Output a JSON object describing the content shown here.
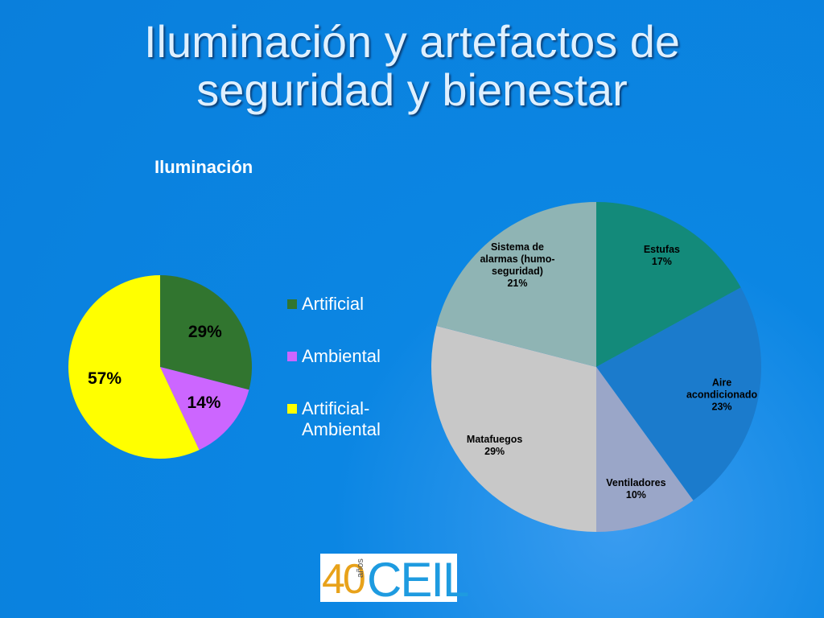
{
  "title": "Iluminación y artefactos de seguridad y bienestar",
  "chart_data": [
    {
      "type": "pie",
      "title": "Iluminación",
      "categories": [
        "Artificial",
        "Ambiental",
        "Artificial-Ambiental"
      ],
      "values": [
        29,
        14,
        57
      ],
      "value_labels": [
        "29%",
        "14%",
        "57%"
      ],
      "colors": [
        "#31752f",
        "#cc66ff",
        "#ffff00"
      ],
      "legend": "right"
    },
    {
      "type": "pie",
      "categories": [
        "Estufas",
        "Aire acondicionado",
        "Ventiladores",
        "Matafuegos",
        "Sistema de alarmas (humo-seguridad)"
      ],
      "values": [
        17,
        23,
        10,
        29,
        21
      ],
      "value_labels": [
        "17%",
        "23%",
        "10%",
        "29%",
        "21%"
      ],
      "colors": [
        "#138a7a",
        "#1b7bcc",
        "#9aa6c8",
        "#c8c8c8",
        "#8fb4b4"
      ]
    }
  ],
  "logo": {
    "number": "40",
    "word": "años",
    "name": "CEIL"
  }
}
